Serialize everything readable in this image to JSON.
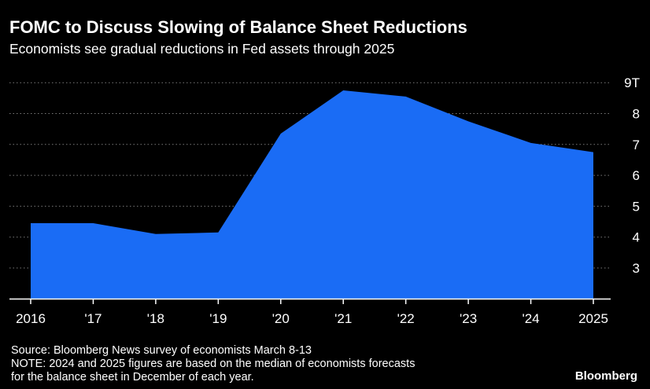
{
  "header": {
    "title": "FOMC to Discuss Slowing of Balance Sheet Reductions",
    "subtitle": "Economists see gradual reductions in Fed assets through 2025"
  },
  "footer": {
    "source": "Source: Bloomberg News survey of economists March 8-13",
    "note_line1": "NOTE: 2024 and 2025 figures are based on the median of economists forecasts",
    "note_line2": "for the balance sheet in December of each year.",
    "brand": "Bloomberg"
  },
  "colors": {
    "area": "#1a6cf5",
    "grid": "#7a7a7a",
    "background": "#000000"
  },
  "chart_data": {
    "type": "area",
    "title": "FOMC to Discuss Slowing of Balance Sheet Reductions",
    "subtitle": "Economists see gradual reductions in Fed assets through 2025",
    "xlabel": "",
    "ylabel": "",
    "categories": [
      "2016",
      "'17",
      "'18",
      "'19",
      "'20",
      "'21",
      "'22",
      "'23",
      "'24",
      "2025"
    ],
    "series": [
      {
        "values": [
          4.45,
          4.45,
          4.1,
          4.15,
          7.35,
          8.75,
          8.55,
          7.75,
          7.05,
          6.75
        ]
      }
    ],
    "yticks": [
      {
        "value": 3,
        "label": "3"
      },
      {
        "value": 4,
        "label": "4"
      },
      {
        "value": 5,
        "label": "5"
      },
      {
        "value": 6,
        "label": "6"
      },
      {
        "value": 7,
        "label": "7"
      },
      {
        "value": 8,
        "label": "8"
      },
      {
        "value": 9,
        "label": "9T"
      }
    ],
    "ylim": [
      2.5,
      9.5
    ],
    "grid": true,
    "y_axis_position": "right"
  }
}
